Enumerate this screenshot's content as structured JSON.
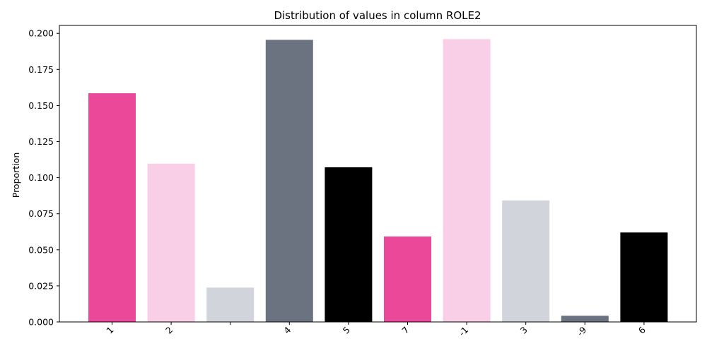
{
  "chart_data": {
    "type": "bar",
    "title": "Distribution of values in column ROLE2",
    "xlabel": "",
    "ylabel": "Proportion",
    "categories": [
      "1",
      "2",
      "",
      "4",
      "5",
      "7",
      "-1",
      "3",
      "-9",
      "6"
    ],
    "values": [
      0.1585,
      0.1097,
      0.0238,
      0.1955,
      0.1072,
      0.0592,
      0.196,
      0.0842,
      0.0043,
      0.062
    ],
    "colors": [
      "#ec4899",
      "#f9cee7",
      "#d1d5db",
      "#6b7280",
      "#000000",
      "#ec4899",
      "#f9cee7",
      "#d1d5db",
      "#6b7280",
      "#000000"
    ],
    "ylim": [
      0,
      0.2055
    ],
    "yticks": [
      "0.000",
      "0.025",
      "0.050",
      "0.075",
      "0.100",
      "0.125",
      "0.150",
      "0.175",
      "0.200"
    ],
    "grid": false,
    "legend": "none"
  }
}
